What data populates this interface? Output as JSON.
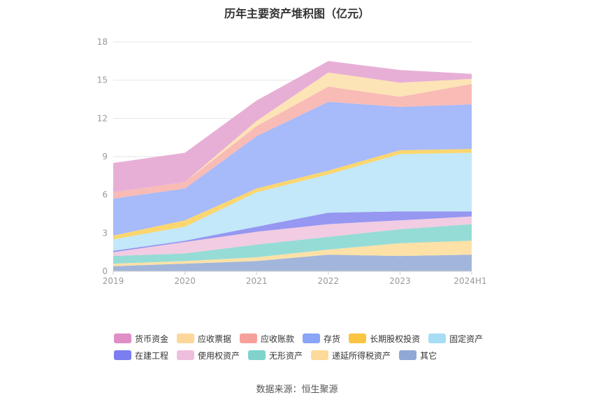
{
  "chart_data": {
    "type": "area",
    "stacked": true,
    "title": "历年主要资产堆积图（亿元）",
    "categories": [
      "2019",
      "2020",
      "2021",
      "2022",
      "2023",
      "2024H1"
    ],
    "y_ticks": [
      "0",
      "3",
      "6",
      "9",
      "12",
      "15",
      "18"
    ],
    "ylim": [
      0,
      18
    ],
    "grid": true,
    "legend_position": "bottom",
    "series": [
      {
        "name": "其它",
        "color": "#9ab0d8",
        "values": [
          0.4,
          0.6,
          0.8,
          1.3,
          1.2,
          1.3
        ]
      },
      {
        "name": "递延所得税资产",
        "color": "#fddea0",
        "values": [
          0.2,
          0.2,
          0.3,
          0.4,
          1.0,
          1.1
        ]
      },
      {
        "name": "无形资产",
        "color": "#8dd9d2",
        "values": [
          0.6,
          0.6,
          1.0,
          1.0,
          1.1,
          1.3
        ]
      },
      {
        "name": "使用权资产",
        "color": "#f0c8e0",
        "values": [
          0.3,
          0.9,
          1.0,
          1.0,
          0.7,
          0.6
        ]
      },
      {
        "name": "在建工程",
        "color": "#8c8ef0",
        "values": [
          0.1,
          0.1,
          0.4,
          0.9,
          0.7,
          0.4
        ]
      },
      {
        "name": "固定资产",
        "color": "#bde6f8",
        "values": [
          0.9,
          1.1,
          2.7,
          3.0,
          4.5,
          4.6
        ]
      },
      {
        "name": "长期股权投资",
        "color": "#fcd262",
        "values": [
          0.3,
          0.5,
          0.3,
          0.3,
          0.3,
          0.3
        ]
      },
      {
        "name": "存货",
        "color": "#9fb4f8",
        "values": [
          2.9,
          2.5,
          4.1,
          5.4,
          3.4,
          3.5
        ]
      },
      {
        "name": "应收账款",
        "color": "#f9b5b0",
        "values": [
          0.5,
          0.5,
          0.8,
          1.2,
          0.8,
          1.6
        ]
      },
      {
        "name": "应收票据",
        "color": "#fde2b0",
        "values": [
          0.0,
          0.0,
          0.4,
          1.1,
          1.1,
          0.4
        ]
      },
      {
        "name": "货币资金",
        "color": "#e5a8d2",
        "values": [
          2.3,
          2.3,
          1.6,
          0.9,
          1.0,
          0.4
        ]
      }
    ]
  },
  "legend": {
    "row1": [
      "货币资金",
      "应收票据",
      "应收账款",
      "存货",
      "长期股权投资",
      "固定资产"
    ],
    "row2": [
      "在建工程",
      "使用权资产",
      "无形资产",
      "递延所得税资产",
      "其它"
    ],
    "colors": {
      "货币资金": "#df8fc6",
      "应收票据": "#fdd79a",
      "应收账款": "#f6a09a",
      "存货": "#8aa4f6",
      "长期股权投资": "#fbc542",
      "固定资产": "#a8ddf6",
      "在建工程": "#7b7df0",
      "使用权资产": "#eebfdd",
      "无形资产": "#7fd3cc",
      "递延所得税资产": "#fdd99a",
      "其它": "#8fa8d6"
    }
  },
  "source": "数据来源：恒生聚源"
}
